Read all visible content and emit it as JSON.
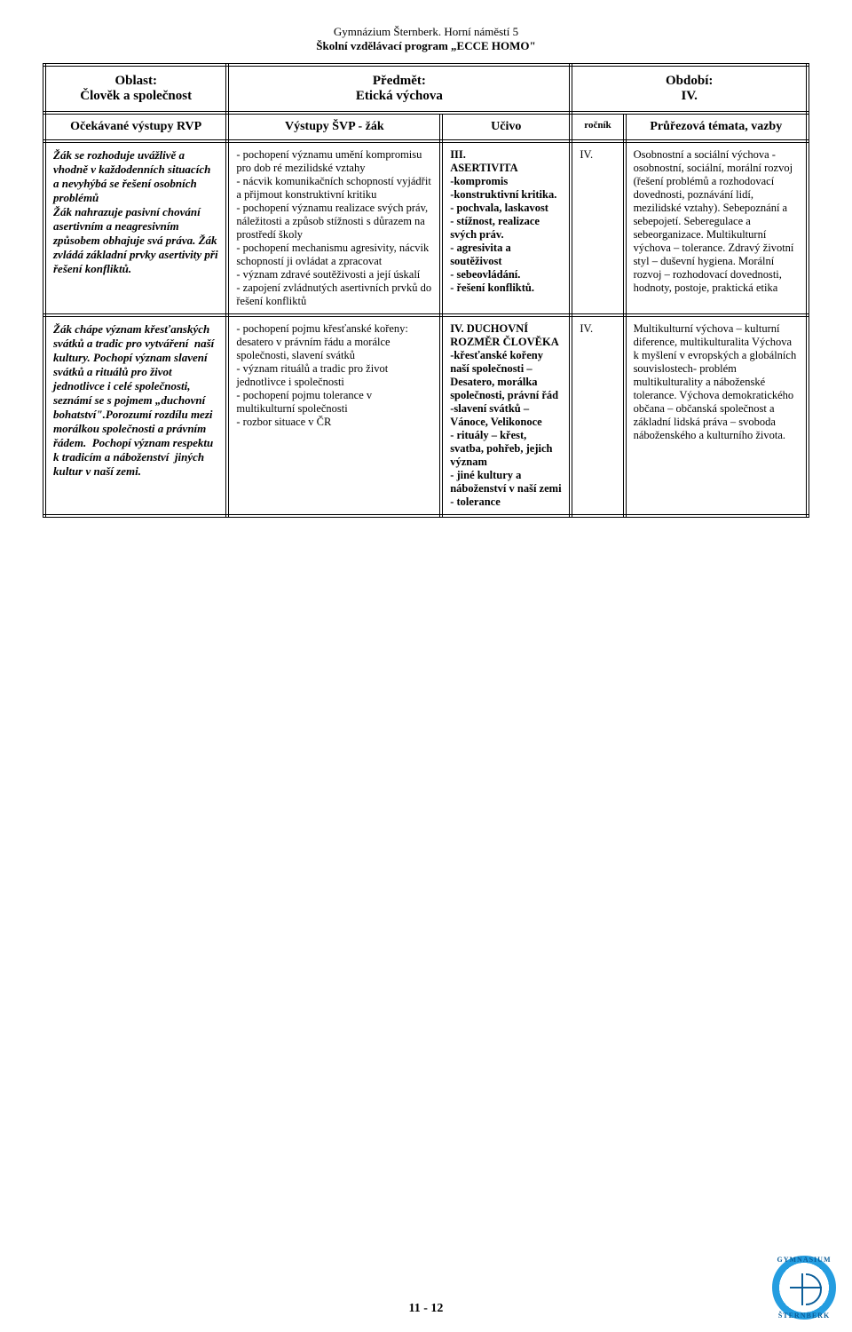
{
  "header": {
    "line1": "Gymnázium Šternberk. Horní náměstí 5",
    "line2": "Školní vzdělávací program „ECCE HOMO\""
  },
  "section": {
    "oblast_label": "Oblast:",
    "oblast_value": "Člověk a společnost",
    "predmet_label": "Předmět:",
    "predmet_value": "Etická výchova",
    "obdobi_label": "Období:",
    "obdobi_value": "IV."
  },
  "columns": {
    "c1": "Očekávané výstupy RVP",
    "c2": "Výstupy ŠVP - žák",
    "c3": "Učivo",
    "c4": "ročník",
    "c5": "Průřezová témata, vazby"
  },
  "rows": [
    {
      "rvp": "Žák se rozhoduje uvážlivě a vhodně v každodenních situacích a nevyhýbá se řešení osobních problémů\nŽák nahrazuje pasivní chování asertivním a neagresivním způsobem obhajuje svá práva. Žák zvládá základní prvky asertivity při řešení konfliktů.",
      "svp": "- pochopení významu umění kompromisu pro dob ré mezilidské vztahy\n- nácvik komunikačních schopností vyjádřit a přijmout konstruktivní kritiku\n- pochopení významu realizace svých práv, náležitosti a způsob stížnosti s důrazem na prostředí školy\n- pochopení mechanismu agresivity, nácvik schopností ji ovládat a zpracovat\n- význam zdravé soutěživosti a její úskalí\n- zapojení zvládnutých asertivních prvků do řešení konfliktů",
      "ucivo_head": "III.\nASERTIVITA",
      "ucivo_body": "-kompromis\n-konstruktivní kritika.\n- pochvala, laskavost\n- stížnost, realizace  svých práv.\n- agresivita a soutěživost\n- sebeovládání.\n- řešení konfliktů.",
      "rocnik": "IV.",
      "prurezova": "Osobnostní a sociální výchova - osobnostní, sociální, morální rozvoj (řešení problémů a rozhodovací dovednosti, poznávání lidí, mezilidské vztahy). Sebepoznání a sebepojetí. Seberegulace a sebeorganizace. Multikulturní výchova – tolerance. Zdravý životní styl – duševní hygiena. Morální rozvoj – rozhodovací dovednosti, hodnoty, postoje, praktická etika"
    },
    {
      "rvp": "Žák chápe význam křesťanských svátků a tradic pro vytváření  naší kultury. Pochopí význam slavení svátků a rituálů pro život jednotlivce i celé společnosti, seznámí se s pojmem „duchovní bohatství\".Porozumí rozdílu mezi morálkou společnosti a právním řádem.  Pochopí význam respektu k tradicím a náboženství  jiných kultur v naší zemi.",
      "svp": "- pochopení pojmu křesťanské kořeny: desatero v právním řádu a morálce společnosti, slavení svátků\n- význam rituálů a tradic pro život jednotlivce i společnosti\n- pochopení pojmu tolerance v multikulturní společnosti\n- rozbor situace v ČR",
      "ucivo_head": "IV. DUCHOVNÍ ROZMĚR ČLOVĚKA",
      "ucivo_body": "-křesťanské kořeny naší společnosti – Desatero, morálka společnosti, právní řád\n-slavení svátků – Vánoce, Velikonoce\n- rituály – křest, svatba, pohřeb, jejich význam\n- jiné kultury a náboženství v naší zemi - tolerance",
      "rocnik": "IV.",
      "prurezova": "Multikulturní výchova – kulturní diference, multikulturalita Výchova k myšlení v evropských a globálních souvislostech- problém multikulturality a náboženské tolerance. Výchova demokratického občana – občanská společnost a základní lidská práva – svoboda náboženského a kulturního života."
    }
  ],
  "footer": {
    "page": "11 - 12"
  },
  "logo": {
    "top": "GYMNASIUM",
    "bottom": "ŠTERNBERK"
  }
}
